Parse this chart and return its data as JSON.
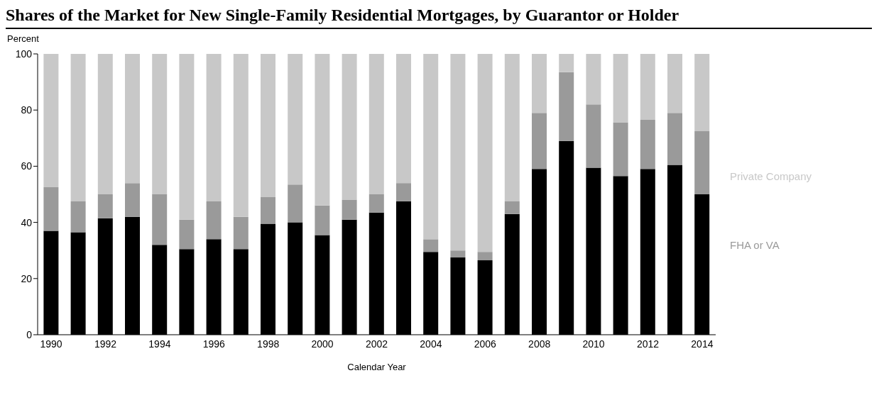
{
  "chart_data": {
    "type": "bar",
    "title": "Shares of the Market for New Single-Family Residential Mortgages, by Guarantor or Holder",
    "ylabel": "Percent",
    "xlabel": "Calendar Year",
    "categories": [
      "1990",
      null,
      "1992",
      null,
      "1994",
      null,
      "1996",
      null,
      "1998",
      null,
      "2000",
      null,
      "2002",
      null,
      "2004",
      null,
      "2006",
      null,
      "2008",
      null,
      "2010",
      null,
      "2012",
      null,
      "2014"
    ],
    "series": [
      {
        "color": "#000000",
        "values": [
          37,
          36.5,
          41.5,
          42,
          32,
          30.5,
          34,
          30.5,
          39.5,
          40,
          35.5,
          41,
          43.5,
          47.5,
          29.5,
          27.5,
          26.5,
          43,
          59,
          69,
          59.5,
          56.5,
          59,
          60.5,
          50
        ]
      },
      {
        "name": "FHA or VA",
        "color": "#9a9a9a",
        "values": [
          15.5,
          11,
          8.5,
          12,
          18,
          10.5,
          13.5,
          11.5,
          9.5,
          13.5,
          10.5,
          7,
          6.5,
          6.5,
          4.5,
          2.5,
          3,
          4.5,
          20,
          24.5,
          22.5,
          19,
          17.5,
          18.5,
          22.5
        ]
      },
      {
        "name": "Private Company",
        "color": "#c8c8c8",
        "values": [
          47.5,
          52.5,
          50,
          46,
          50,
          59,
          52.5,
          58,
          51,
          46.5,
          54,
          52,
          50,
          46,
          66,
          70,
          70.5,
          52.5,
          21,
          6.5,
          18,
          24.5,
          23.5,
          21,
          27.5
        ]
      }
    ],
    "stacked": true,
    "ylim": [
      0,
      100
    ],
    "yticks": [
      0,
      20,
      40,
      60,
      80,
      100
    ],
    "grid": false,
    "legend": "right"
  }
}
